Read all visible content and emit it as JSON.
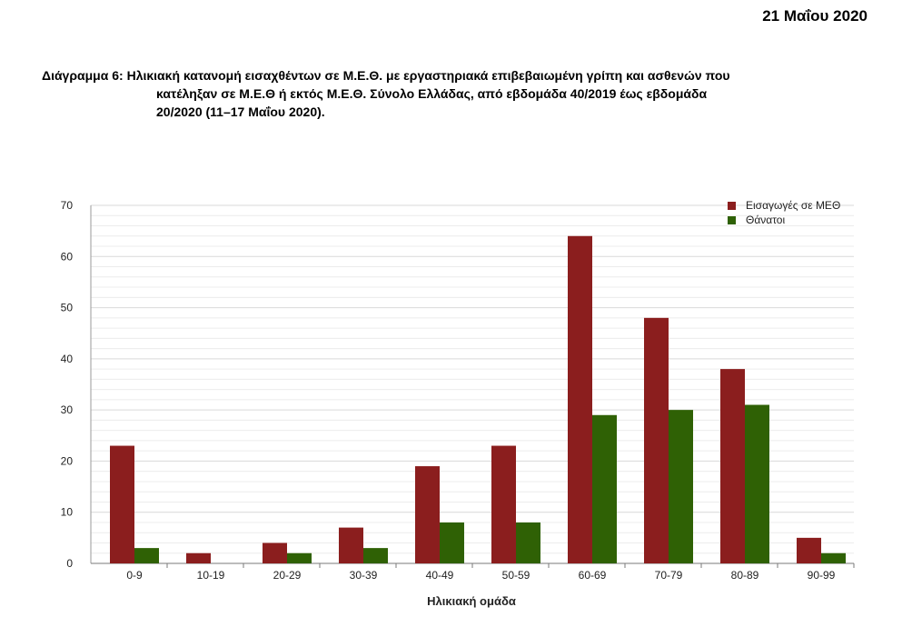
{
  "header": {
    "date": "21 Μαΐου 2020"
  },
  "caption": {
    "prefix": "Διάγραμμα 6:",
    "line1": " Ηλικιακή κατανομή εισαχθέντων σε Μ.Ε.Θ. με εργαστηριακά επιβεβαιωμένη γρίπη και ασθενών που",
    "line2": "κατέληξαν σε Μ.Ε.Θ ή εκτός Μ.Ε.Θ. Σύνολο Ελλάδας, από εβδομάδα 40/2019 έως εβδομάδα",
    "line3": "20/2020 (11–17 Μαΐου 2020)."
  },
  "chart_data": {
    "type": "bar",
    "xlabel": "Ηλικιακή ομάδα",
    "ylabel": "",
    "ylim": [
      0,
      70
    ],
    "yticks": [
      0,
      10,
      20,
      30,
      40,
      50,
      60,
      70
    ],
    "minor_grid_step": 2,
    "grid": true,
    "legend_position": "top-right",
    "categories": [
      "0-9",
      "10-19",
      "20-29",
      "30-39",
      "40-49",
      "50-59",
      "60-69",
      "70-79",
      "80-89",
      "90-99"
    ],
    "series": [
      {
        "name": "Εισαγωγές σε ΜΕΘ",
        "color": "#8b1e1e",
        "values": [
          23,
          2,
          4,
          7,
          19,
          23,
          64,
          48,
          38,
          5
        ]
      },
      {
        "name": "Θάνατοι",
        "color": "#2f6105",
        "values": [
          3,
          0,
          2,
          3,
          8,
          8,
          29,
          30,
          31,
          2
        ]
      }
    ]
  }
}
